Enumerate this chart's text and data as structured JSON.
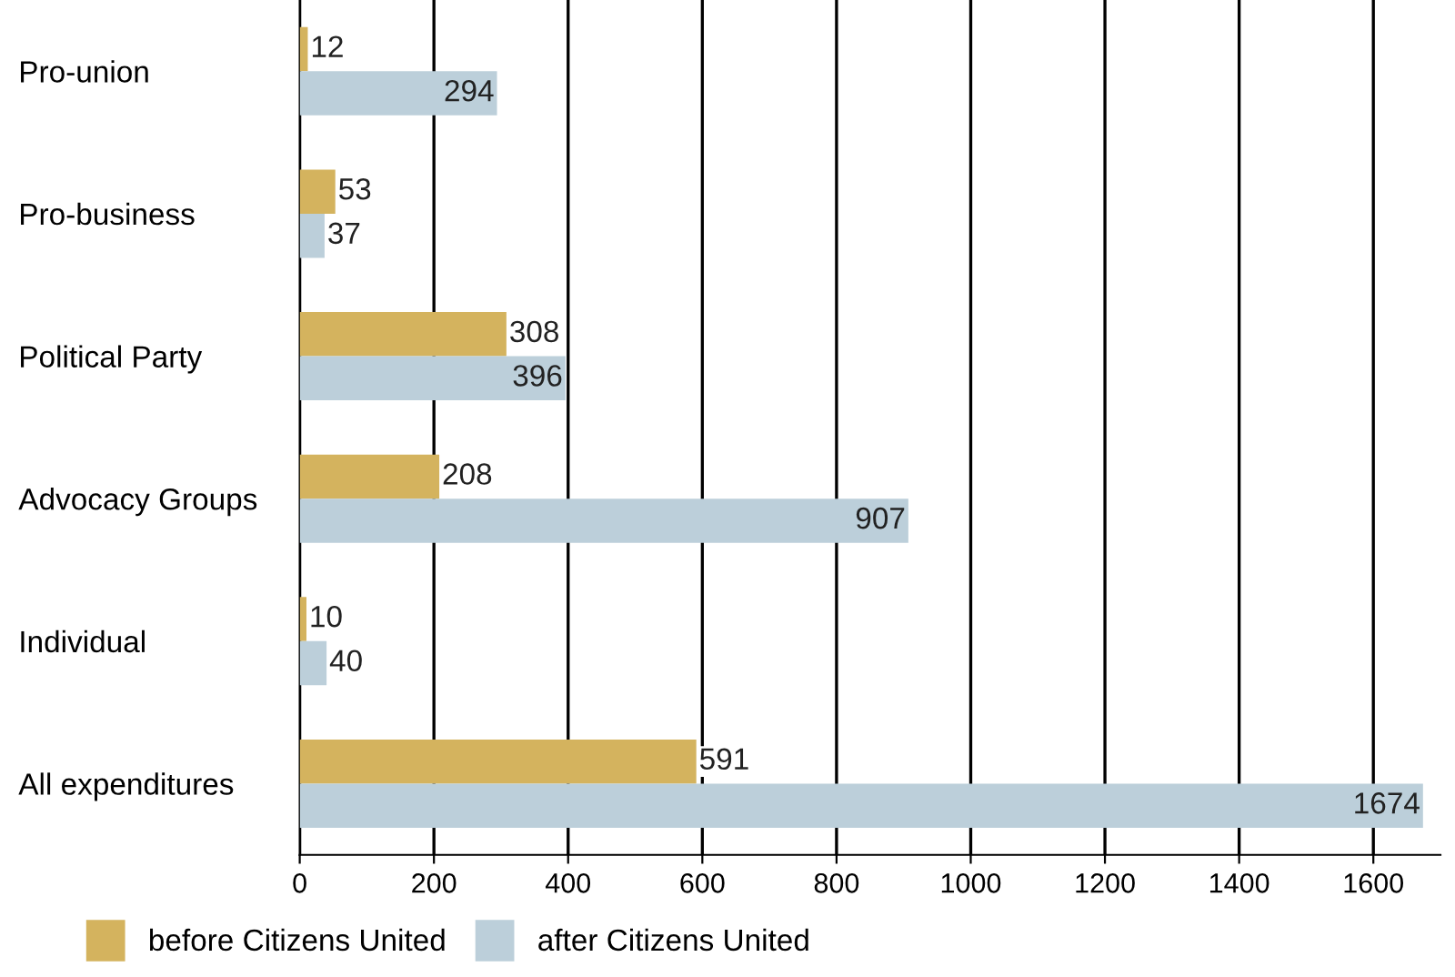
{
  "chart_data": {
    "type": "bar",
    "orientation": "horizontal",
    "categories": [
      "Pro-union",
      "Pro-business",
      "Political Party",
      "Advocacy Groups",
      "Individual",
      "All expenditures"
    ],
    "series": [
      {
        "name": "before Citizens United",
        "color": "#d4b35e",
        "values": [
          12,
          53,
          308,
          208,
          10,
          591
        ]
      },
      {
        "name": "after Citizens United",
        "color": "#bccfda",
        "values": [
          294,
          37,
          396,
          907,
          40,
          1674
        ]
      }
    ],
    "xlim": [
      0,
      1700
    ],
    "xticks": [
      0,
      200,
      400,
      600,
      800,
      1000,
      1200,
      1400,
      1600
    ],
    "grid": "x",
    "legend": "bottom left",
    "data_labels": true
  }
}
